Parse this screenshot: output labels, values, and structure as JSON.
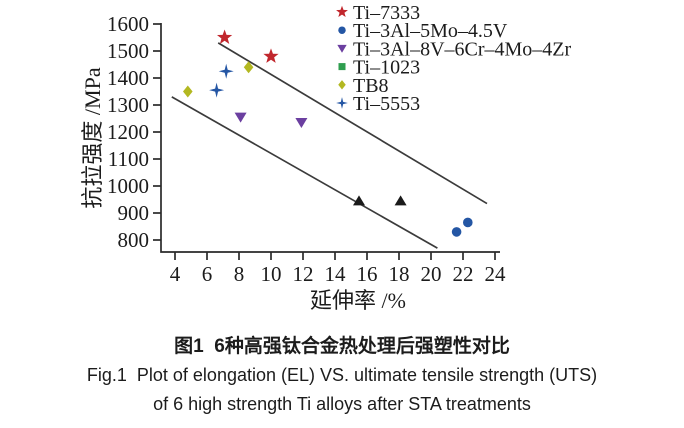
{
  "figure": {
    "background": "#ffffff",
    "caption_zh": "图1  6种高强钛合金热处理后强塑性对比",
    "caption_en_line1": "Fig.1  Plot of elongation (EL) VS. ultimate tensile strength (UTS)",
    "caption_en_line2": "of 6 high strength Ti alloys after STA treatments"
  },
  "chart_data": {
    "type": "scatter",
    "title": "",
    "xlabel": "延伸率 /%",
    "ylabel": "抗拉强度 /MPa",
    "xlim": [
      4,
      24
    ],
    "xtick_step": 2,
    "ylim": [
      800,
      1600
    ],
    "ytick_step": 100,
    "grid": false,
    "legend_position": "top-right",
    "axis_color": "#2a2a2a",
    "band_line_color": "#3b3b3b",
    "series": [
      {
        "name": "Ti–7333",
        "marker": "star",
        "color": "#c1272d",
        "in_legend": true,
        "points": [
          [
            7.1,
            1550
          ],
          [
            10.0,
            1480
          ]
        ]
      },
      {
        "name": "Ti–3Al–5Mo–4.5V",
        "marker": "circle",
        "color": "#2456a4",
        "in_legend": true,
        "points": [
          [
            21.6,
            830
          ],
          [
            22.3,
            865
          ]
        ]
      },
      {
        "name": "Ti–3Al–8V–6Cr–4Mo–4Zr",
        "marker": "triangle-down",
        "color": "#6b3fa0",
        "in_legend": true,
        "points": [
          [
            8.1,
            1255
          ],
          [
            11.9,
            1235
          ]
        ]
      },
      {
        "name": "Ti–1023",
        "marker": "square",
        "color": "#2f9e4f",
        "in_legend": true,
        "points": []
      },
      {
        "name": "TB8",
        "marker": "diamond",
        "color": "#b3b821",
        "in_legend": true,
        "points": [
          [
            4.8,
            1350
          ],
          [
            8.6,
            1440
          ]
        ]
      },
      {
        "name": "Ti–5553",
        "marker": "four-point-star",
        "color": "#2456a4",
        "in_legend": true,
        "points": [
          [
            6.6,
            1355
          ],
          [
            7.2,
            1425
          ]
        ]
      },
      {
        "name": "",
        "marker": "triangle-up",
        "color": "#1a1a1a",
        "in_legend": false,
        "points": [
          [
            15.5,
            945
          ],
          [
            18.1,
            945
          ]
        ]
      }
    ],
    "band_lines": [
      {
        "from": [
          6.7,
          1530
        ],
        "to": [
          23.5,
          935
        ]
      },
      {
        "from": [
          3.8,
          1330
        ],
        "to": [
          20.4,
          770
        ]
      }
    ]
  }
}
